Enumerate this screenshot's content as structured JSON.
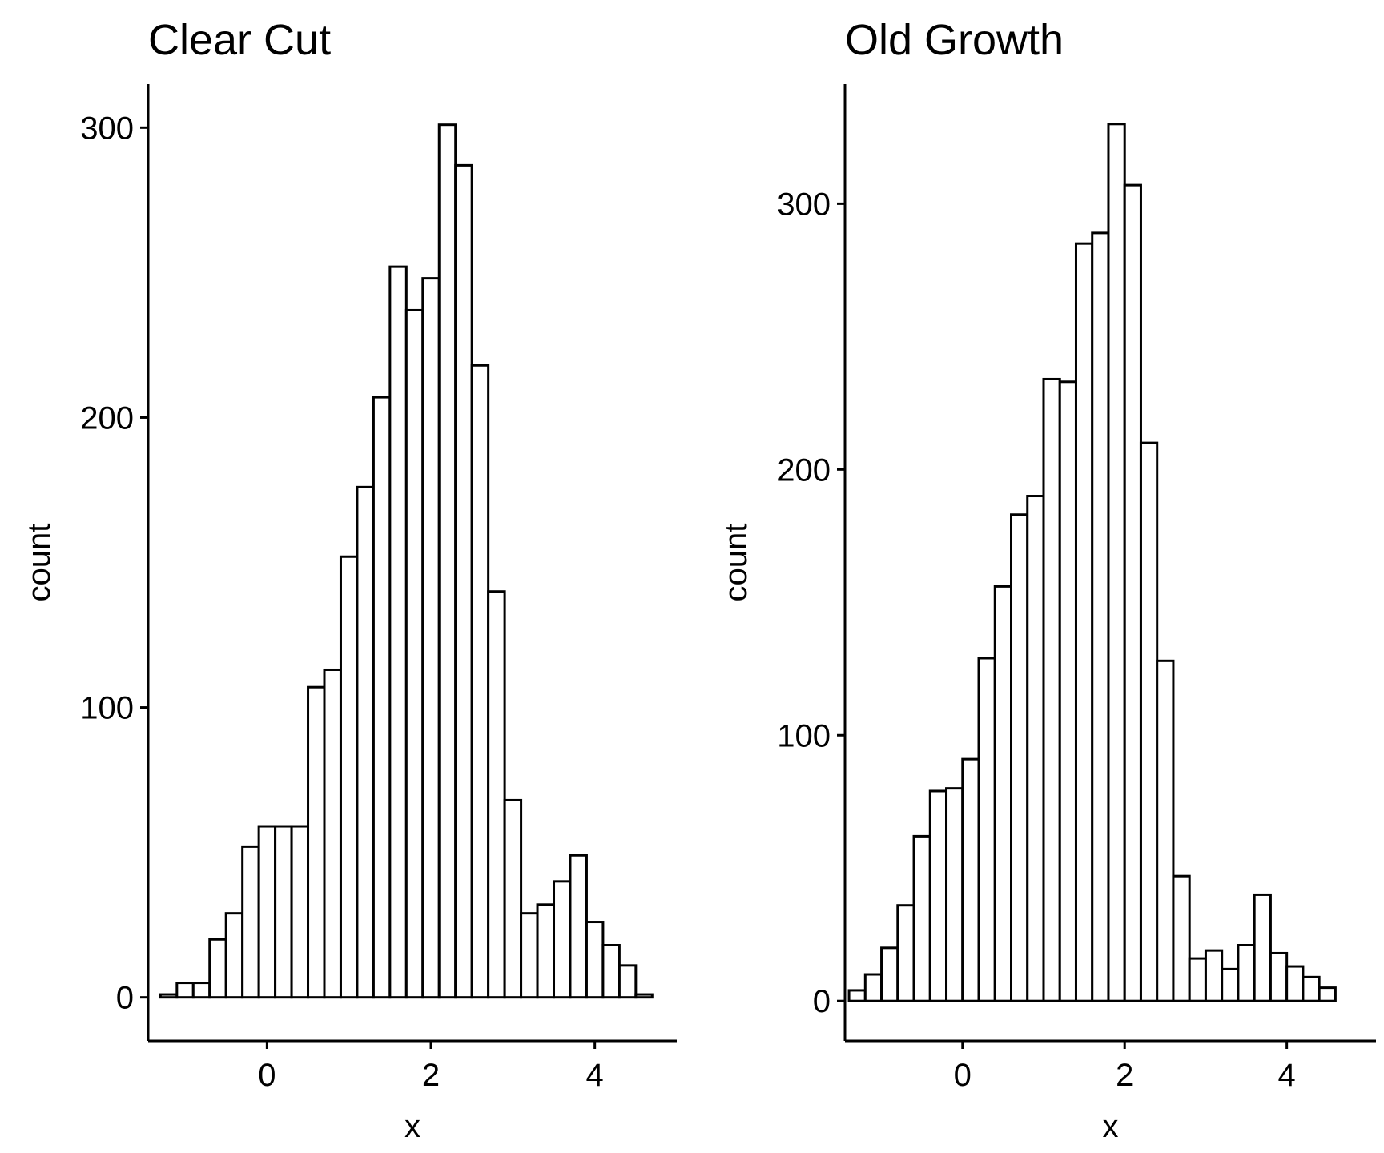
{
  "chart_data": [
    {
      "type": "bar",
      "subtype": "histogram",
      "title": "Clear Cut",
      "xlabel": "x",
      "ylabel": "count",
      "xlim": [
        -1.45,
        5.0
      ],
      "ylim": [
        -15,
        315
      ],
      "xticks": [
        0,
        2,
        4
      ],
      "yticks": [
        0,
        100,
        200,
        300
      ],
      "bin_width": 0.2,
      "bin_start": -1.3,
      "values": [
        1,
        5,
        5,
        20,
        29,
        52,
        59,
        59,
        59,
        107,
        113,
        152,
        176,
        207,
        252,
        237,
        248,
        301,
        287,
        218,
        140,
        68,
        29,
        32,
        40,
        49,
        26,
        18,
        11,
        1
      ],
      "grid": false,
      "legend": "none",
      "colors": {
        "fill": "#ffffff",
        "outline": "#000000"
      }
    },
    {
      "type": "bar",
      "subtype": "histogram",
      "title": "Old Growth",
      "xlabel": "x",
      "ylabel": "count",
      "xlim": [
        -1.45,
        5.1
      ],
      "ylim": [
        -15,
        345
      ],
      "xticks": [
        0,
        2,
        4
      ],
      "yticks": [
        0,
        100,
        200,
        300
      ],
      "bin_width": 0.2,
      "bin_start": -1.4,
      "values": [
        4,
        10,
        20,
        36,
        62,
        79,
        80,
        91,
        129,
        156,
        183,
        190,
        234,
        233,
        285,
        289,
        330,
        307,
        210,
        128,
        47,
        16,
        19,
        12,
        21,
        40,
        18,
        13,
        9,
        5
      ],
      "grid": false,
      "legend": "none",
      "colors": {
        "fill": "#ffffff",
        "outline": "#000000"
      }
    }
  ]
}
